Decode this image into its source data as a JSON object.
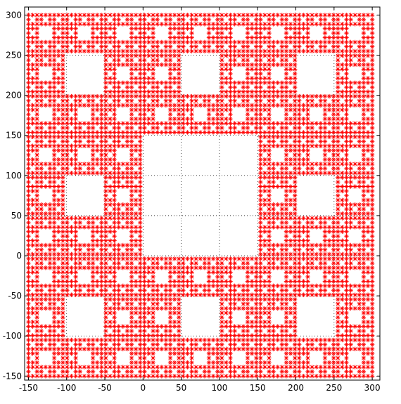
{
  "chart_data": {
    "type": "scatter",
    "title": "",
    "xlabel": "",
    "ylabel": "",
    "xlim": [
      -155,
      310
    ],
    "ylim": [
      -155,
      310
    ],
    "xticks": [
      -150,
      -100,
      -50,
      0,
      50,
      100,
      150,
      200,
      250,
      300
    ],
    "yticks": [
      -150,
      -100,
      -50,
      0,
      50,
      100,
      150,
      200,
      250,
      300
    ],
    "xtick_labels": [
      "-150",
      "-100",
      "-50",
      "0",
      "50",
      "100",
      "150",
      "200",
      "250",
      "300"
    ],
    "ytick_labels": [
      "-150",
      "-100",
      "-50",
      "0",
      "50",
      "100",
      "150",
      "200",
      "250",
      "300"
    ],
    "grid": true,
    "grid_style": "dotted",
    "marker": "asterisk",
    "marker_color": "#ff0000",
    "pattern": "sierpinski-carpet",
    "points_description": "Sierpinski carpet of asterisk markers: 81x81 grid, x from -150 to 300 and y from -150 to 300 in steps of 5.625; removed squares at carpet levels 1-4",
    "grid_x_start": -150,
    "grid_y_start": -150,
    "grid_step": 5.625,
    "grid_count": 81,
    "carpet_levels": 4
  }
}
